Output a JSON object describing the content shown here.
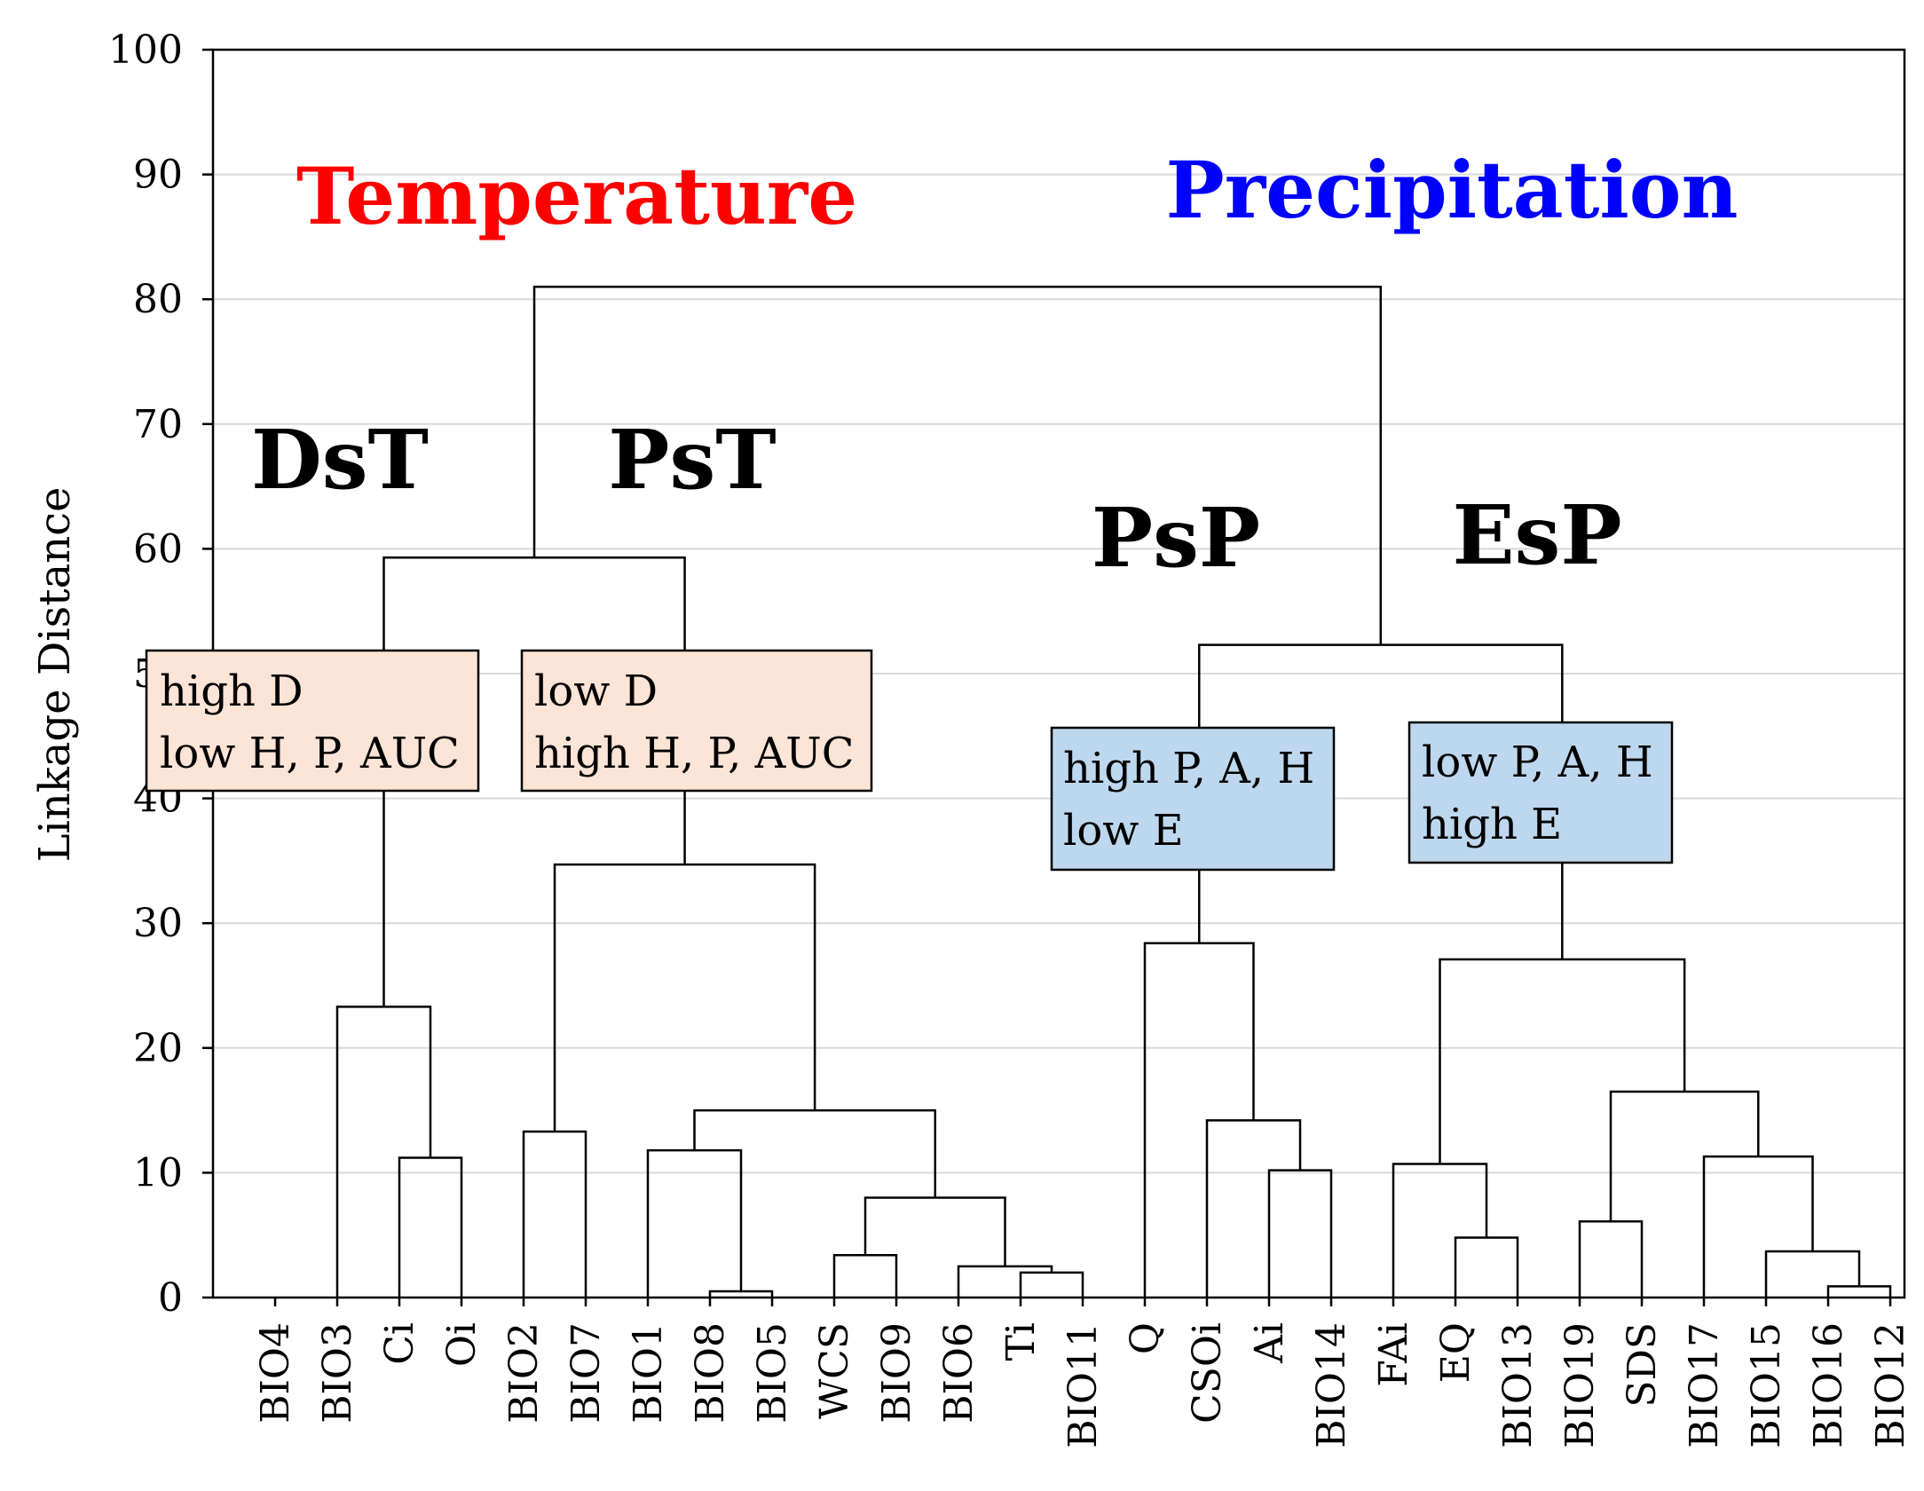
{
  "chart_data": {
    "type": "dendrogram",
    "ylabel": "Linkage Distance",
    "ylim": [
      0,
      100
    ],
    "yticks": [
      0,
      10,
      20,
      30,
      40,
      50,
      60,
      70,
      80,
      90,
      100
    ],
    "grid": true,
    "leaves": [
      "BIO4",
      "BIO3",
      "Ci",
      "Oi",
      "BIO2",
      "BIO7",
      "BIO1",
      "BIO8",
      "BIO5",
      "WCS",
      "BIO9",
      "BIO6",
      "Ti",
      "BIO11",
      "Q",
      "CSOi",
      "Ai",
      "BIO14",
      "FAi",
      "EQ",
      "BIO13",
      "BIO19",
      "SDS",
      "BIO17",
      "BIO15",
      "BIO16",
      "BIO12"
    ],
    "merges": [
      {
        "a": "BIO8",
        "b": "BIO5",
        "height": 0.5
      },
      {
        "a": "BIO16",
        "b": "BIO12",
        "height": 0.9
      },
      {
        "a": "Ti",
        "b": "BIO11",
        "height": 2.0
      },
      {
        "a": "WCS",
        "b": "BIO9",
        "height": 3.4
      },
      {
        "a": "BIO15",
        "b": "BIO16+BIO12",
        "height": 3.7
      },
      {
        "a": "EQ",
        "b": "BIO13",
        "height": 4.8
      },
      {
        "a": "BIO19",
        "b": "SDS",
        "height": 6.1
      },
      {
        "a": "BIO6",
        "b": "Ti+BIO11",
        "height": 2.5
      },
      {
        "a": "WCS+BIO9",
        "b": "BIO6+Ti+BIO11",
        "height": 8.0
      },
      {
        "a": "Ai",
        "b": "BIO14",
        "height": 10.2
      },
      {
        "a": "FAi",
        "b": "EQ+BIO13",
        "height": 10.7
      },
      {
        "a": "Ci",
        "b": "Oi",
        "height": 11.2
      },
      {
        "a": "BIO17",
        "b": "BIO15+BIO16+BIO12",
        "height": 11.3
      },
      {
        "a": "BIO1",
        "b": "BIO8+BIO5",
        "height": 11.8
      },
      {
        "a": "BIO2",
        "b": "BIO7",
        "height": 13.3
      },
      {
        "a": "CSOi",
        "b": "Ai+BIO14",
        "height": 14.2
      },
      {
        "a": "BIO1+BIO8+BIO5",
        "b": "WCS..BIO11",
        "height": 15.0
      },
      {
        "a": "BIO19+SDS",
        "b": "BIO17..BIO12",
        "height": 16.5
      },
      {
        "a": "BIO3",
        "b": "Ci+Oi",
        "height": 23.3
      },
      {
        "a": "FAi+EQ+BIO13",
        "b": "BIO19..BIO12",
        "height": 27.1
      },
      {
        "a": "Q",
        "b": "CSOi+Ai+BIO14",
        "height": 28.4
      },
      {
        "a": "BIO2+BIO7",
        "b": "BIO1..BIO11",
        "height": 34.7
      },
      {
        "a": "Q..BIO14",
        "b": "FAi..BIO12",
        "height": 52.3
      },
      {
        "a": "BIO4..Oi",
        "b": "BIO2..BIO11",
        "height": 59.3
      },
      {
        "a": "Temperature",
        "b": "Precipitation",
        "height": 81.0
      }
    ],
    "group_titles": [
      {
        "text": "Temperature",
        "color": "#ff0000"
      },
      {
        "text": "Precipitation",
        "color": "#0000ff"
      }
    ],
    "cluster_labels": [
      "DsT",
      "PsT",
      "PsP",
      "EsP"
    ],
    "annotation_boxes": [
      {
        "lines": [
          "high D",
          "low H, P, AUC"
        ],
        "fill": "#fce4d6"
      },
      {
        "lines": [
          "low D",
          "high H, P, AUC"
        ],
        "fill": "#fce4d6"
      },
      {
        "lines": [
          "high P, A, H",
          "low E"
        ],
        "fill": "#bdd7ee"
      },
      {
        "lines": [
          "low P, A, H",
          "high E"
        ],
        "fill": "#bdd7ee"
      }
    ]
  }
}
